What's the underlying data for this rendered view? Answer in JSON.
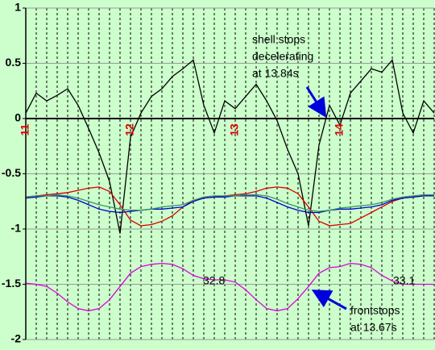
{
  "chart_data": {
    "type": "line",
    "x": [
      11.0,
      11.1,
      11.2,
      11.3,
      11.4,
      11.5,
      11.6,
      11.7,
      11.8,
      11.9,
      12.0,
      12.1,
      12.2,
      12.3,
      12.4,
      12.5,
      12.6,
      12.7,
      12.8,
      12.9,
      13.0,
      13.1,
      13.2,
      13.3,
      13.4,
      13.5,
      13.6,
      13.7,
      13.8,
      13.9,
      14.0,
      14.1,
      14.2,
      14.3,
      14.4,
      14.5,
      14.6,
      14.7,
      14.8,
      14.9
    ],
    "xlim": [
      11,
      14.9
    ],
    "xticks": [
      11,
      12,
      13,
      14
    ],
    "ylim": [
      -2,
      1
    ],
    "yticks": [
      1,
      0.5,
      0,
      -0.5,
      -1,
      -1.5,
      -2
    ],
    "grid": true,
    "background": "#ccffcc",
    "series": [
      {
        "color": "#000000",
        "values": [
          0.05,
          0.23,
          0.16,
          0.21,
          0.27,
          0.12,
          -0.09,
          -0.31,
          -0.57,
          -1.04,
          -0.17,
          0.05,
          0.2,
          0.27,
          0.38,
          0.45,
          0.53,
          0.12,
          -0.13,
          0.16,
          0.09,
          0.2,
          0.31,
          0.16,
          -0.02,
          -0.28,
          -0.5,
          -0.97,
          -0.24,
          0.12,
          -0.06,
          0.23,
          0.34,
          0.45,
          0.42,
          0.53,
          0.05,
          -0.13,
          0.16,
          0.05
        ]
      },
      {
        "color": "#dd0000",
        "values": [
          -0.71,
          -0.7,
          -0.69,
          -0.68,
          -0.67,
          -0.65,
          -0.63,
          -0.62,
          -0.66,
          -0.78,
          -0.92,
          -0.97,
          -0.96,
          -0.93,
          -0.88,
          -0.8,
          -0.74,
          -0.72,
          -0.71,
          -0.7,
          -0.69,
          -0.68,
          -0.66,
          -0.63,
          -0.62,
          -0.63,
          -0.68,
          -0.8,
          -0.93,
          -0.97,
          -0.96,
          -0.95,
          -0.9,
          -0.85,
          -0.8,
          -0.75,
          -0.72,
          -0.71,
          -0.7,
          -0.69
        ]
      },
      {
        "color": "#0000cc",
        "values": [
          -0.72,
          -0.71,
          -0.7,
          -0.7,
          -0.71,
          -0.74,
          -0.78,
          -0.82,
          -0.84,
          -0.85,
          -0.84,
          -0.83,
          -0.82,
          -0.82,
          -0.81,
          -0.8,
          -0.75,
          -0.72,
          -0.71,
          -0.71,
          -0.7,
          -0.7,
          -0.7,
          -0.72,
          -0.76,
          -0.8,
          -0.83,
          -0.85,
          -0.85,
          -0.83,
          -0.82,
          -0.82,
          -0.81,
          -0.8,
          -0.78,
          -0.74,
          -0.72,
          -0.71,
          -0.7,
          -0.7
        ]
      },
      {
        "color": "#339966",
        "values": [
          -0.71,
          -0.7,
          -0.7,
          -0.69,
          -0.7,
          -0.72,
          -0.75,
          -0.78,
          -0.8,
          -0.82,
          -0.83,
          -0.83,
          -0.82,
          -0.8,
          -0.79,
          -0.78,
          -0.74,
          -0.71,
          -0.7,
          -0.7,
          -0.7,
          -0.69,
          -0.69,
          -0.7,
          -0.73,
          -0.77,
          -0.8,
          -0.83,
          -0.84,
          -0.83,
          -0.81,
          -0.8,
          -0.79,
          -0.78,
          -0.76,
          -0.73,
          -0.71,
          -0.7,
          -0.69,
          -0.69
        ]
      },
      {
        "color": "#dd00dd",
        "values": [
          -1.49,
          -1.5,
          -1.52,
          -1.58,
          -1.66,
          -1.72,
          -1.74,
          -1.72,
          -1.64,
          -1.52,
          -1.4,
          -1.34,
          -1.32,
          -1.31,
          -1.32,
          -1.36,
          -1.42,
          -1.45,
          -1.46,
          -1.46,
          -1.48,
          -1.55,
          -1.64,
          -1.72,
          -1.74,
          -1.72,
          -1.63,
          -1.52,
          -1.4,
          -1.35,
          -1.34,
          -1.31,
          -1.32,
          -1.35,
          -1.42,
          -1.47,
          -1.5,
          -1.5,
          -1.5,
          -1.5
        ]
      }
    ],
    "annotations": {
      "label_1": "32.8",
      "label_2": "33.1",
      "shell": [
        "shell stops",
        "decelerating",
        "at 13.84s"
      ],
      "front": [
        "frontstops",
        "at 13.67s"
      ]
    }
  }
}
